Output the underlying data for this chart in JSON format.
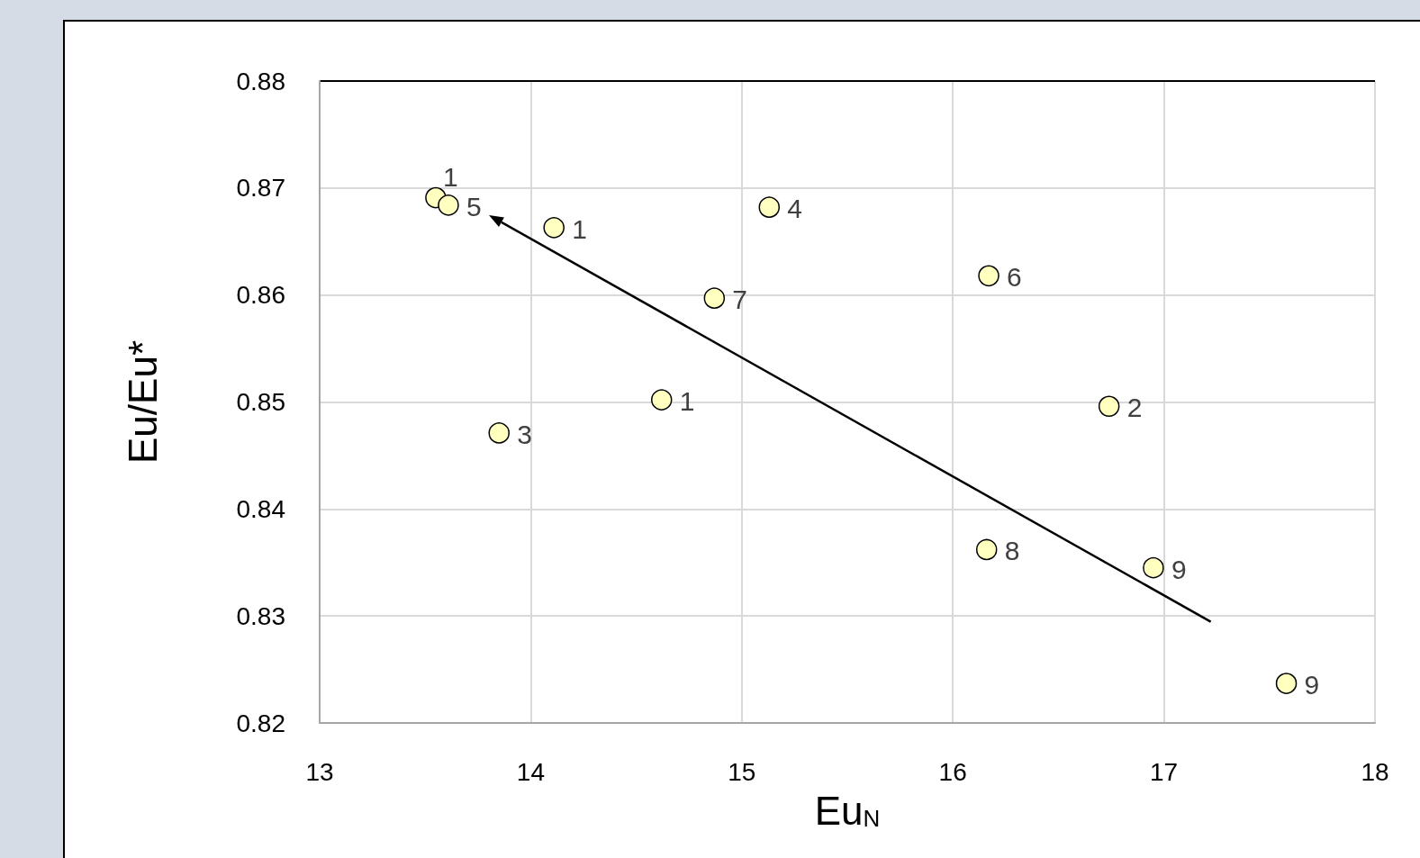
{
  "chart_data": {
    "type": "scatter",
    "xlabel": "Eu$_{N}$",
    "ylabel": "Eu/Eu*",
    "xlim": [
      13,
      18
    ],
    "xticks": [
      13,
      14,
      15,
      16,
      17,
      18
    ],
    "ylim": [
      0.82,
      0.88
    ],
    "yticks": [
      0.82,
      0.83,
      0.84,
      0.85,
      0.86,
      0.87,
      0.88
    ],
    "grid": true,
    "marker": "circle",
    "series": [
      {
        "color": "#ffffc0",
        "x": [
          13.55,
          13.61,
          14.11,
          15.13,
          14.87,
          14.62,
          13.85,
          16.17,
          16.74,
          16.16,
          16.95,
          17.58
        ],
        "values": [
          0.8691,
          0.8684,
          0.8663,
          0.8682,
          0.8597,
          0.8502,
          0.8471,
          0.8618,
          0.8496,
          0.8362,
          0.8345,
          0.8237
        ]
      }
    ],
    "annotations": [
      {
        "text": "1",
        "x": 13.55,
        "y": 0.8691
      },
      {
        "text": "5",
        "x": 13.61,
        "y": 0.8684
      },
      {
        "text": "1",
        "x": 14.11,
        "y": 0.8663
      },
      {
        "text": "4",
        "x": 15.13,
        "y": 0.8682
      },
      {
        "text": "7",
        "x": 14.87,
        "y": 0.8597
      },
      {
        "text": "1",
        "x": 14.62,
        "y": 0.8502
      },
      {
        "text": "3",
        "x": 13.85,
        "y": 0.8471
      },
      {
        "text": "6",
        "x": 16.17,
        "y": 0.8618
      },
      {
        "text": "2",
        "x": 16.74,
        "y": 0.8496
      },
      {
        "text": "8",
        "x": 16.16,
        "y": 0.8362
      },
      {
        "text": "9",
        "x": 16.95,
        "y": 0.8345
      },
      {
        "text": "9",
        "x": 17.58,
        "y": 0.8237
      }
    ]
  }
}
